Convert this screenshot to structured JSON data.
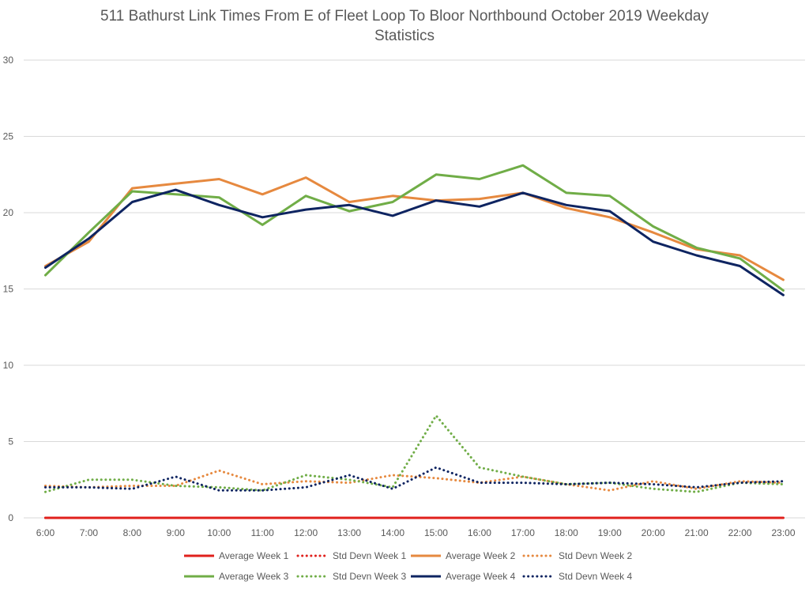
{
  "chart_data": {
    "type": "line",
    "title": "511 Bathurst Link Times From E of Fleet Loop To Bloor Northbound October 2019 Weekday Statistics",
    "title_lines": [
      "511 Bathurst Link Times From E of Fleet Loop To Bloor Northbound October 2019 Weekday",
      "Statistics"
    ],
    "xlabel": "",
    "ylabel": "",
    "ylim": [
      0,
      30
    ],
    "yticks": [
      0,
      5,
      10,
      15,
      20,
      25,
      30
    ],
    "grid": true,
    "legend_position": "bottom",
    "categories": [
      "6:00",
      "7:00",
      "8:00",
      "9:00",
      "10:00",
      "11:00",
      "12:00",
      "13:00",
      "14:00",
      "15:00",
      "16:00",
      "17:00",
      "18:00",
      "19:00",
      "20:00",
      "21:00",
      "22:00",
      "23:00"
    ],
    "series": [
      {
        "name": "Average Week 1",
        "color": "#e0201c",
        "style": "solid",
        "values": [
          0,
          0,
          0,
          0,
          0,
          0,
          0,
          0,
          0,
          0,
          0,
          0,
          0,
          0,
          0,
          0,
          0,
          0
        ]
      },
      {
        "name": "Std Devn Week 1",
        "color": "#e0201c",
        "style": "dotted",
        "values": [
          0,
          0,
          0,
          0,
          0,
          0,
          0,
          0,
          0,
          0,
          0,
          0,
          0,
          0,
          0,
          0,
          0,
          0
        ]
      },
      {
        "name": "Average Week 2",
        "color": "#e6893f",
        "style": "solid",
        "values": [
          16.5,
          18.1,
          21.6,
          21.9,
          22.2,
          21.2,
          22.3,
          20.7,
          21.1,
          20.8,
          20.9,
          21.3,
          20.3,
          19.7,
          18.7,
          17.6,
          17.2,
          15.6
        ]
      },
      {
        "name": "Std Devn Week 2",
        "color": "#e6893f",
        "style": "dotted",
        "values": [
          2.1,
          2.0,
          2.1,
          2.1,
          3.1,
          2.2,
          2.4,
          2.3,
          2.8,
          2.6,
          2.3,
          2.7,
          2.2,
          1.8,
          2.4,
          1.9,
          2.4,
          2.3
        ]
      },
      {
        "name": "Average Week 3",
        "color": "#70ad47",
        "style": "solid",
        "values": [
          15.9,
          18.7,
          21.4,
          21.2,
          21.0,
          19.2,
          21.1,
          20.1,
          20.7,
          22.5,
          22.2,
          23.1,
          21.3,
          21.1,
          19.1,
          17.7,
          17.0,
          14.9
        ]
      },
      {
        "name": "Std Devn Week 3",
        "color": "#70ad47",
        "style": "dotted",
        "values": [
          1.7,
          2.5,
          2.5,
          2.1,
          2.0,
          1.8,
          2.8,
          2.5,
          2.0,
          6.7,
          3.3,
          2.7,
          2.2,
          2.3,
          1.9,
          1.7,
          2.3,
          2.2
        ]
      },
      {
        "name": "Average Week 4",
        "color": "#0e2461",
        "style": "solid",
        "values": [
          16.4,
          18.3,
          20.7,
          21.5,
          20.5,
          19.7,
          20.2,
          20.5,
          19.8,
          20.8,
          20.4,
          21.3,
          20.5,
          20.1,
          18.1,
          17.2,
          16.5,
          14.6
        ]
      },
      {
        "name": "Std Devn Week 4",
        "color": "#0e2461",
        "style": "dotted",
        "values": [
          2.0,
          2.0,
          1.9,
          2.7,
          1.8,
          1.8,
          2.0,
          2.8,
          1.9,
          3.3,
          2.3,
          2.3,
          2.2,
          2.3,
          2.2,
          2.0,
          2.3,
          2.4
        ]
      }
    ]
  }
}
